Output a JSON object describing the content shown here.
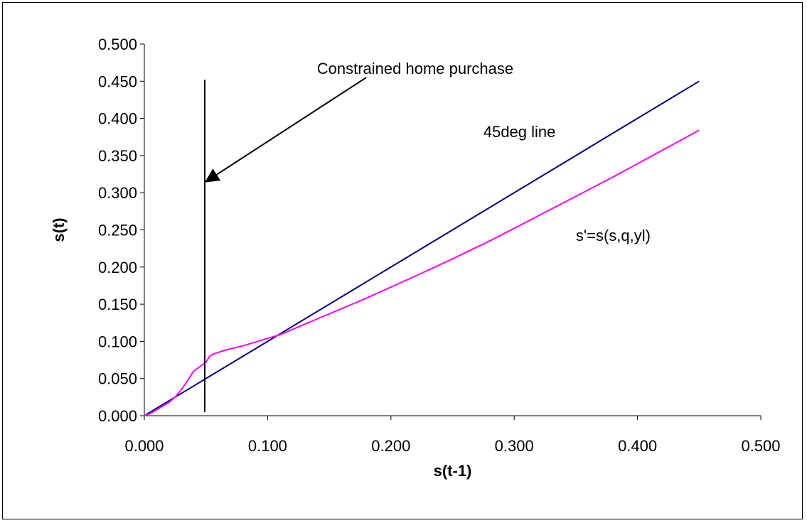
{
  "chart_data": {
    "type": "line",
    "title": "",
    "xlabel": "s(t-1)",
    "ylabel": "s(t)",
    "xlim": [
      0,
      0.5
    ],
    "ylim": [
      0,
      0.5
    ],
    "x_ticks": [
      "0.000",
      "0.100",
      "0.200",
      "0.300",
      "0.400",
      "0.500"
    ],
    "y_ticks": [
      "0.000",
      "0.050",
      "0.100",
      "0.150",
      "0.200",
      "0.250",
      "0.300",
      "0.350",
      "0.400",
      "0.450",
      "0.500"
    ],
    "grid": false,
    "legend": "none",
    "series": [
      {
        "color": "#000080",
        "x": [
          0.0,
          0.45
        ],
        "y": [
          0.0,
          0.45
        ]
      },
      {
        "color": "#ff00ff",
        "x": [
          0.0,
          0.005,
          0.01,
          0.015,
          0.02,
          0.025,
          0.03,
          0.035,
          0.04,
          0.045,
          0.05,
          0.053,
          0.056,
          0.06,
          0.065,
          0.07,
          0.08,
          0.09,
          0.1,
          0.11,
          0.12,
          0.13,
          0.14,
          0.15,
          0.16,
          0.18,
          0.2,
          0.22,
          0.25,
          0.28,
          0.3,
          0.33,
          0.35,
          0.38,
          0.4,
          0.42,
          0.45
        ],
        "y": [
          0.0,
          0.003,
          0.008,
          0.013,
          0.018,
          0.025,
          0.035,
          0.047,
          0.06,
          0.066,
          0.072,
          0.08,
          0.083,
          0.085,
          0.088,
          0.09,
          0.094,
          0.099,
          0.104,
          0.109,
          0.116,
          0.123,
          0.13,
          0.137,
          0.144,
          0.158,
          0.173,
          0.188,
          0.211,
          0.235,
          0.252,
          0.278,
          0.295,
          0.321,
          0.339,
          0.357,
          0.384
        ]
      }
    ],
    "annotations": [
      {
        "text": "Constrained home purchase",
        "x": 0.14,
        "y": 0.46
      },
      {
        "text": "45deg line",
        "x": 0.275,
        "y": 0.375
      },
      {
        "text": "s'=s(s,q,yl)",
        "x": 0.35,
        "y": 0.235
      }
    ],
    "vertical_line": {
      "x": 0.049,
      "y_from": 0.005,
      "y_to": 0.452
    },
    "arrow": {
      "from": {
        "x": 0.18,
        "y": 0.455
      },
      "to": {
        "x": 0.05,
        "y": 0.315
      }
    }
  }
}
